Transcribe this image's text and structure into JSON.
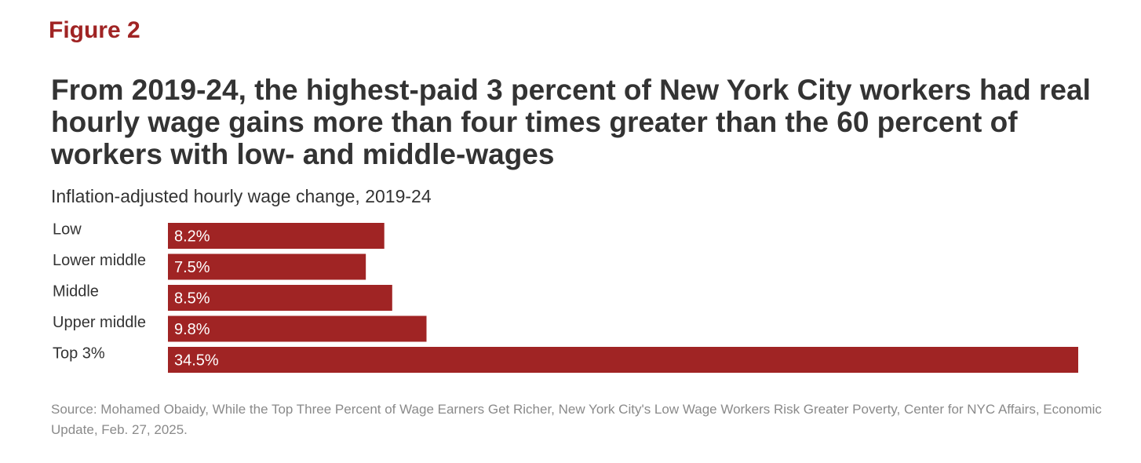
{
  "figure_label": "Figure 2",
  "title": "From 2019-24, the highest-paid 3 percent of New York City workers had real hourly wage gains more than four times greater than the 60 percent of workers with low- and middle-wages",
  "subtitle": "Inflation-adjusted hourly wage change, 2019-24",
  "source": "Source: Mohamed Obaidy, While the Top Three Percent of Wage Earners Get Richer, New York City's Low Wage Workers Risk Greater Poverty, Center for NYC Affairs, Economic Update, Feb. 27, 2025.",
  "colors": {
    "bar": "#a02424",
    "label_text": "#333333",
    "value_text": "#ffffff",
    "accent": "#a02424"
  },
  "chart_data": {
    "type": "bar",
    "orientation": "horizontal",
    "categories": [
      "Low",
      "Lower middle",
      "Middle",
      "Upper middle",
      "Top 3%"
    ],
    "values": [
      8.2,
      7.5,
      8.5,
      9.8,
      34.5
    ],
    "value_labels": [
      "8.2%",
      "7.5%",
      "8.5%",
      "9.8%",
      "34.5%"
    ],
    "title": "From 2019-24, the highest-paid 3 percent of New York City workers had real hourly wage gains more than four times greater than the 60 percent of workers with low- and middle-wages",
    "subtitle": "Inflation-adjusted hourly wage change, 2019-24",
    "xlim": [
      0,
      34.5
    ],
    "grid": false,
    "legend": "none"
  }
}
